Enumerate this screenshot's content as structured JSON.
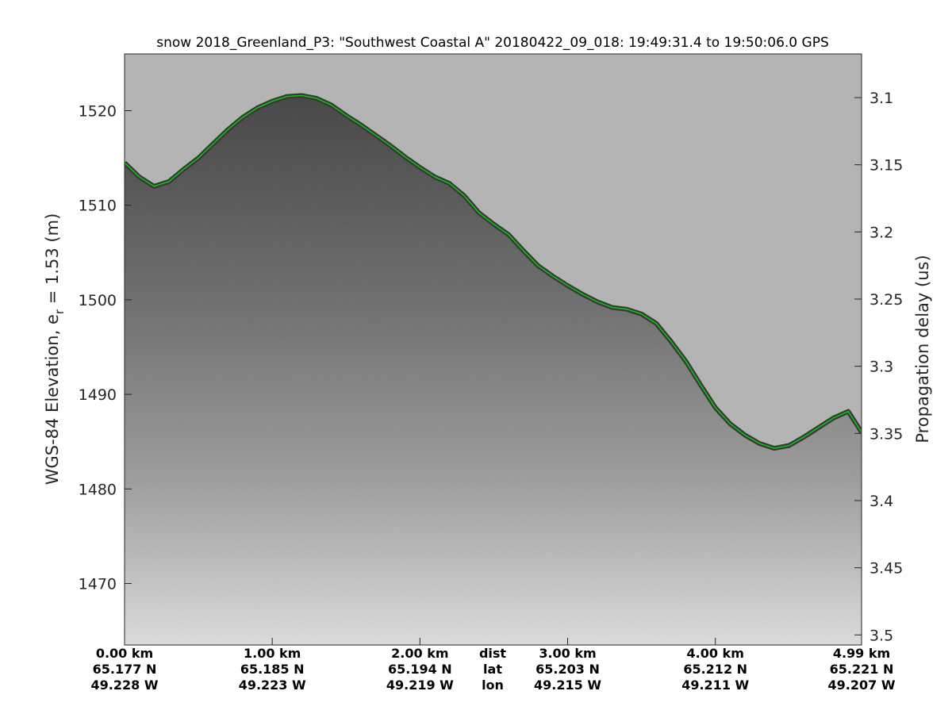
{
  "chart_data": {
    "type": "radar-echogram",
    "title": "snow 2018_Greenland_P3: \"Southwest Coastal A\"  20180422_09_018: 19:49:31.4 to 19:50:06.0 GPS",
    "ylabel_left_main": "WGS-84 Elevation, e",
    "ylabel_left_sub": "r",
    "ylabel_left_tail": " = 1.53 (m)",
    "ylabel_right": "Propagation delay (us)",
    "ylim_left": [
      1463.5,
      1526.0
    ],
    "ylim_right": [
      3.0675,
      3.5075
    ],
    "yticks_left": [
      1470,
      1480,
      1490,
      1500,
      1510,
      1520
    ],
    "yticks_right": [
      3.1,
      3.15,
      3.2,
      3.25,
      3.3,
      3.35,
      3.4,
      3.45,
      3.5
    ],
    "yticks_right_labels": [
      "3.1",
      "3.15",
      "3.2",
      "3.25",
      "3.3",
      "3.35",
      "3.4",
      "3.45",
      "3.5"
    ],
    "xlim_km": [
      0.0,
      4.99
    ],
    "x_ticks": [
      {
        "dist_km": 0.0,
        "dist": "0.00 km",
        "lat": "65.177 N",
        "lon": "49.228 W"
      },
      {
        "dist_km": 1.0,
        "dist": "1.00 km",
        "lat": "65.185 N",
        "lon": "49.223 W"
      },
      {
        "dist_km": 2.0,
        "dist": "2.00 km",
        "lat": "65.194 N",
        "lon": "49.219 W"
      },
      {
        "dist_km": 3.0,
        "dist": "3.00 km",
        "lat": "65.203 N",
        "lon": "49.215 W"
      },
      {
        "dist_km": 4.0,
        "dist": "4.00 km",
        "lat": "65.212 N",
        "lon": "49.211 W"
      },
      {
        "dist_km": 4.99,
        "dist": "4.99 km",
        "lat": "65.221 N",
        "lon": "49.207 W"
      }
    ],
    "row_labels": {
      "dist": "dist",
      "lat": "lat",
      "lon": "lon"
    },
    "surface_series": {
      "color": "#00dd00",
      "x_km": [
        0.0,
        0.1,
        0.2,
        0.3,
        0.4,
        0.5,
        0.6,
        0.7,
        0.8,
        0.9,
        1.0,
        1.1,
        1.2,
        1.3,
        1.4,
        1.5,
        1.6,
        1.7,
        1.8,
        1.9,
        2.0,
        2.1,
        2.2,
        2.3,
        2.4,
        2.5,
        2.6,
        2.7,
        2.8,
        2.9,
        3.0,
        3.1,
        3.2,
        3.3,
        3.4,
        3.5,
        3.6,
        3.7,
        3.8,
        3.9,
        4.0,
        4.1,
        4.2,
        4.3,
        4.4,
        4.5,
        4.6,
        4.7,
        4.8,
        4.9,
        4.99
      ],
      "elevation_m": [
        1514.5,
        1513.0,
        1512.0,
        1512.5,
        1513.8,
        1515.0,
        1516.5,
        1518.0,
        1519.3,
        1520.3,
        1521.0,
        1521.5,
        1521.6,
        1521.3,
        1520.6,
        1519.5,
        1518.5,
        1517.4,
        1516.3,
        1515.1,
        1514.0,
        1513.0,
        1512.3,
        1511.0,
        1509.2,
        1508.0,
        1506.9,
        1505.2,
        1503.6,
        1502.5,
        1501.5,
        1500.6,
        1499.8,
        1499.2,
        1499.0,
        1498.5,
        1497.5,
        1495.6,
        1493.5,
        1491.0,
        1488.6,
        1486.9,
        1485.7,
        1484.8,
        1484.3,
        1484.6,
        1485.5,
        1486.5,
        1487.5,
        1488.2,
        1486.0
      ]
    }
  }
}
